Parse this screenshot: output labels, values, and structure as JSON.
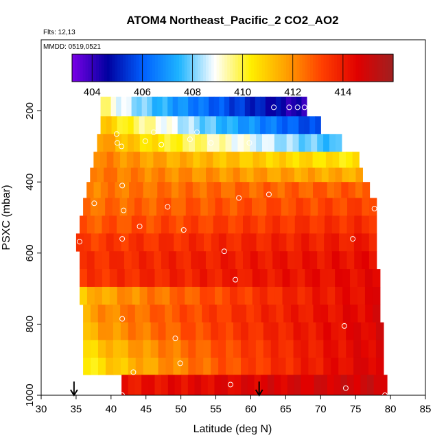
{
  "chart_data": {
    "type": "heatmap",
    "title": "ATOM4 Northeast_Pacific_2 CO2_AO2",
    "subtitle_flights": "Flts: 12,13",
    "subtitle_dates": "MMDD: 0519,0521",
    "xlabel": "Latitude (deg N)",
    "ylabel": "PSXC (mbar)",
    "xlim": [
      30,
      85
    ],
    "ylim": [
      1000,
      0
    ],
    "x_ticks": [
      "30",
      "35",
      "40",
      "45",
      "50",
      "55",
      "60",
      "65",
      "70",
      "75",
      "80",
      "85"
    ],
    "y_ticks": [
      "200",
      "400",
      "600",
      "800",
      "1000"
    ],
    "colorbar": {
      "range": [
        403.2,
        416.0
      ],
      "tick_labels": [
        "404",
        "406",
        "408",
        "410",
        "412",
        "414"
      ],
      "tick_values": [
        404,
        406,
        408,
        410,
        412,
        414
      ],
      "colors": [
        "#7a00e6",
        "#0000a0",
        "#0060ff",
        "#1eb4ff",
        "#ffffff",
        "#fff000",
        "#ffa000",
        "#ff4000",
        "#e00000",
        "#a02020"
      ]
    },
    "curtain_bands": [
      {
        "p": 190,
        "lat_min": 38.5,
        "lat_max": 68.0,
        "v0": 410.0,
        "v1": 404.0
      },
      {
        "p": 240,
        "lat_min": 38.5,
        "lat_max": 70.0,
        "v0": 411.5,
        "v1": 405.5
      },
      {
        "p": 290,
        "lat_min": 38.0,
        "lat_max": 73.0,
        "v0": 412.2,
        "v1": 407.5
      },
      {
        "p": 340,
        "lat_min": 37.5,
        "lat_max": 75.5,
        "v0": 412.4,
        "v1": 410.4
      },
      {
        "p": 380,
        "lat_min": 37.0,
        "lat_max": 76.0,
        "v0": 412.5,
        "v1": 411.5
      },
      {
        "p": 420,
        "lat_min": 36.5,
        "lat_max": 77.0,
        "v0": 412.2,
        "v1": 412.8
      },
      {
        "p": 470,
        "lat_min": 36.0,
        "lat_max": 78.0,
        "v0": 412.4,
        "v1": 413.2
      },
      {
        "p": 520,
        "lat_min": 35.5,
        "lat_max": 78.0,
        "v0": 412.7,
        "v1": 413.6
      },
      {
        "p": 570,
        "lat_min": 35.0,
        "lat_max": 78.0,
        "v0": 413.2,
        "v1": 414.0
      },
      {
        "p": 620,
        "lat_min": 35.5,
        "lat_max": 78.0,
        "v0": 413.4,
        "v1": 414.3
      },
      {
        "p": 670,
        "lat_min": 35.5,
        "lat_max": 78.5,
        "v0": 413.3,
        "v1": 414.4
      },
      {
        "p": 720,
        "lat_min": 35.5,
        "lat_max": 78.5,
        "v0": 411.0,
        "v1": 414.5
      },
      {
        "p": 770,
        "lat_min": 36.0,
        "lat_max": 78.5,
        "v0": 411.5,
        "v1": 414.6
      },
      {
        "p": 820,
        "lat_min": 36.0,
        "lat_max": 79.0,
        "v0": 411.2,
        "v1": 414.7
      },
      {
        "p": 870,
        "lat_min": 36.0,
        "lat_max": 79.0,
        "v0": 410.5,
        "v1": 414.7
      },
      {
        "p": 920,
        "lat_min": 36.0,
        "lat_max": 79.0,
        "v0": 410.0,
        "v1": 414.8
      },
      {
        "p": 965,
        "lat_min": 41.5,
        "lat_max": 79.5,
        "v0": 414.0,
        "v1": 415.0
      }
    ],
    "sample_points": [
      {
        "lat": 63.3,
        "p": 190
      },
      {
        "lat": 65.5,
        "p": 190
      },
      {
        "lat": 66.7,
        "p": 190
      },
      {
        "lat": 67.7,
        "p": 190
      },
      {
        "lat": 40.8,
        "p": 265
      },
      {
        "lat": 40.9,
        "p": 290
      },
      {
        "lat": 41.5,
        "p": 300
      },
      {
        "lat": 44.9,
        "p": 285
      },
      {
        "lat": 46.1,
        "p": 260
      },
      {
        "lat": 47.2,
        "p": 295
      },
      {
        "lat": 52.3,
        "p": 260
      },
      {
        "lat": 51.3,
        "p": 280
      },
      {
        "lat": 54.3,
        "p": 290
      },
      {
        "lat": 59.8,
        "p": 290
      },
      {
        "lat": 41.6,
        "p": 410
      },
      {
        "lat": 37.6,
        "p": 460
      },
      {
        "lat": 41.8,
        "p": 480
      },
      {
        "lat": 48.1,
        "p": 470
      },
      {
        "lat": 58.3,
        "p": 445
      },
      {
        "lat": 62.6,
        "p": 435
      },
      {
        "lat": 77.7,
        "p": 475
      },
      {
        "lat": 44.1,
        "p": 525
      },
      {
        "lat": 50.4,
        "p": 535
      },
      {
        "lat": 41.6,
        "p": 560
      },
      {
        "lat": 35.5,
        "p": 568
      },
      {
        "lat": 74.6,
        "p": 560
      },
      {
        "lat": 56.2,
        "p": 595
      },
      {
        "lat": 57.8,
        "p": 675
      },
      {
        "lat": 41.6,
        "p": 785
      },
      {
        "lat": 73.4,
        "p": 805
      },
      {
        "lat": 49.2,
        "p": 840
      },
      {
        "lat": 49.9,
        "p": 910
      },
      {
        "lat": 43.2,
        "p": 935
      },
      {
        "lat": 57.1,
        "p": 970
      },
      {
        "lat": 73.6,
        "p": 980
      },
      {
        "lat": 41.6,
        "p": 1000
      },
      {
        "lat": 79.2,
        "p": 1000
      }
    ],
    "arrows_lat": [
      34.7,
      61.2
    ]
  }
}
